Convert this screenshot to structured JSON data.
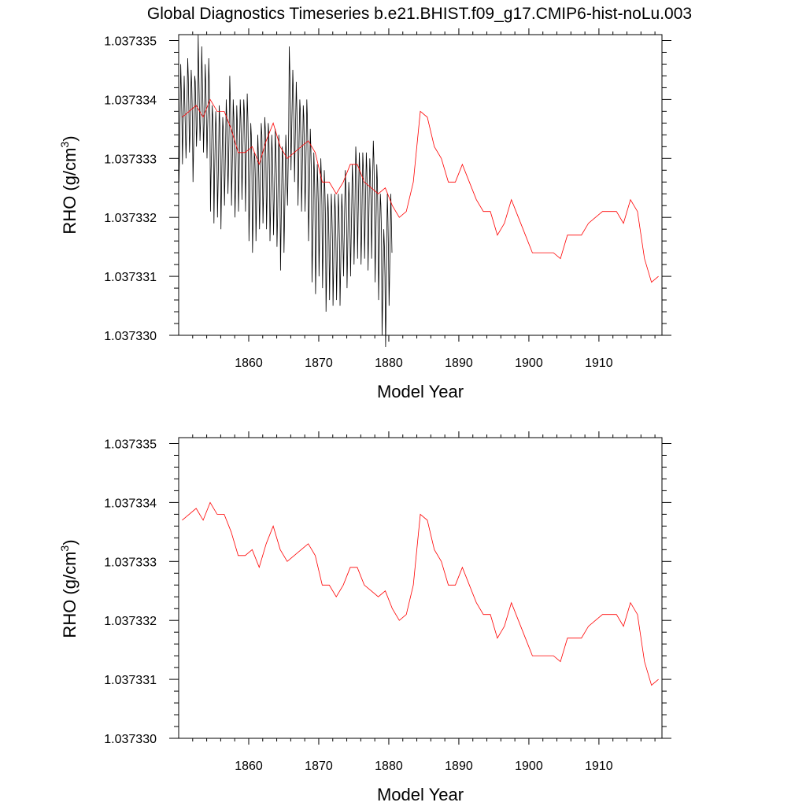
{
  "figure_title": "Global Diagnostics Timeseries b.e21.BHIST.f09_g17.CMIP6-hist-noLu.003",
  "chart_data": [
    {
      "type": "line",
      "xlabel": "Model Year",
      "ylabel": "RHO (g/cm3)",
      "ylabel_main": "RHO (g/cm",
      "ylabel_sup": "3",
      "ylabel_close": ")",
      "xlim": [
        1850,
        1919
      ],
      "ylim": [
        1.03733,
        1.0373351
      ],
      "xticks": [
        1860,
        1870,
        1880,
        1890,
        1900,
        1910
      ],
      "xtick_labels": [
        "1860",
        "1870",
        "1880",
        "1890",
        "1900",
        "1910"
      ],
      "yticks": [
        1.03733,
        1.037331,
        1.037332,
        1.037333,
        1.037334,
        1.037335
      ],
      "ytick_labels": [
        "1.037330",
        "1.037331",
        "1.037332",
        "1.037333",
        "1.037334",
        "1.037335"
      ],
      "series": [
        {
          "kind": "monthly",
          "color": "#000000",
          "x_start": 1850.04,
          "x_step": 0.0833333,
          "values": [
            1.0373326,
            1.0373331,
            1.0373337,
            1.0373346,
            1.0373342,
            1.0373337,
            1.0373329,
            1.0373335,
            1.0373339,
            1.0373344,
            1.0373339,
            1.0373335,
            1.037333,
            1.0373334,
            1.037334,
            1.0373347,
            1.0373344,
            1.0373338,
            1.0373331,
            1.0373334,
            1.0373339,
            1.0373345,
            1.0373342,
            1.0373337,
            1.0373326,
            1.0373331,
            1.0373336,
            1.0373344,
            1.0373343,
            1.0373338,
            1.0373332,
            1.0373335,
            1.037334,
            1.0373351,
            1.0373344,
            1.0373339,
            1.0373333,
            1.0373336,
            1.037334,
            1.0373349,
            1.0373344,
            1.0373339,
            1.0373331,
            1.0373335,
            1.0373339,
            1.0373346,
            1.0373342,
            1.0373337,
            1.037333,
            1.0373335,
            1.0373338,
            1.0373347,
            1.0373343,
            1.0373337,
            1.0373321,
            1.0373327,
            1.0373332,
            1.0373339,
            1.0373337,
            1.0373333,
            1.0373319,
            1.0373327,
            1.0373332,
            1.0373338,
            1.0373335,
            1.037333,
            1.037332,
            1.0373325,
            1.0373331,
            1.0373339,
            1.0373336,
            1.0373331,
            1.0373318,
            1.0373325,
            1.0373331,
            1.0373337,
            1.0373335,
            1.0373329,
            1.0373322,
            1.0373327,
            1.0373333,
            1.037334,
            1.0373337,
            1.0373332,
            1.0373324,
            1.0373329,
            1.0373335,
            1.0373344,
            1.037334,
            1.0373335,
            1.0373322,
            1.0373327,
            1.0373332,
            1.037334,
            1.0373337,
            1.0373331,
            1.037332,
            1.0373325,
            1.0373331,
            1.0373339,
            1.0373336,
            1.0373331,
            1.0373321,
            1.0373326,
            1.0373333,
            1.037334,
            1.0373337,
            1.0373332,
            1.0373323,
            1.0373329,
            1.0373334,
            1.037334,
            1.0373338,
            1.0373332,
            1.0373321,
            1.0373328,
            1.0373334,
            1.0373341,
            1.0373337,
            1.0373331,
            1.0373316,
            1.0373322,
            1.0373328,
            1.0373336,
            1.0373334,
            1.0373329,
            1.0373314,
            1.0373319,
            1.0373325,
            1.0373331,
            1.037333,
            1.0373326,
            1.0373316,
            1.0373322,
            1.0373327,
            1.0373334,
            1.0373331,
            1.0373326,
            1.0373318,
            1.0373323,
            1.0373329,
            1.0373336,
            1.0373334,
            1.0373328,
            1.0373319,
            1.0373324,
            1.037333,
            1.0373337,
            1.0373335,
            1.037333,
            1.0373318,
            1.0373323,
            1.0373329,
            1.0373336,
            1.0373334,
            1.0373328,
            1.0373316,
            1.0373321,
            1.0373327,
            1.0373334,
            1.0373331,
            1.0373327,
            1.0373317,
            1.0373322,
            1.0373327,
            1.0373335,
            1.0373331,
            1.0373327,
            1.0373315,
            1.037332,
            1.0373326,
            1.0373334,
            1.0373331,
            1.0373326,
            1.0373311,
            1.0373318,
            1.0373325,
            1.0373332,
            1.037333,
            1.0373325,
            1.0373314,
            1.037332,
            1.0373326,
            1.0373334,
            1.0373331,
            1.0373326,
            1.0373322,
            1.0373328,
            1.0373335,
            1.0373349,
            1.0373345,
            1.0373339,
            1.0373328,
            1.0373334,
            1.0373339,
            1.0373345,
            1.0373341,
            1.0373336,
            1.0373326,
            1.0373332,
            1.0373337,
            1.0373343,
            1.0373339,
            1.0373334,
            1.0373322,
            1.0373328,
            1.0373334,
            1.037334,
            1.0373338,
            1.0373333,
            1.0373321,
            1.0373326,
            1.0373332,
            1.0373339,
            1.0373337,
            1.0373331,
            1.0373321,
            1.0373326,
            1.0373332,
            1.037334,
            1.0373337,
            1.0373331,
            1.0373316,
            1.0373321,
            1.0373327,
            1.0373335,
            1.0373332,
            1.0373327,
            1.0373309,
            1.0373315,
            1.037332,
            1.0373331,
            1.0373328,
            1.0373323,
            1.0373307,
            1.0373313,
            1.037332,
            1.0373329,
            1.0373326,
            1.0373321,
            1.037331,
            1.0373317,
            1.0373323,
            1.037333,
            1.0373327,
            1.0373322,
            1.0373308,
            1.0373314,
            1.037332,
            1.0373328,
            1.0373325,
            1.037332,
            1.0373304,
            1.037331,
            1.0373316,
            1.0373324,
            1.0373321,
            1.0373316,
            1.0373306,
            1.0373313,
            1.0373319,
            1.0373324,
            1.0373321,
            1.0373316,
            1.0373305,
            1.0373311,
            1.0373317,
            1.0373324,
            1.0373321,
            1.0373316,
            1.0373306,
            1.0373312,
            1.0373318,
            1.0373324,
            1.0373321,
            1.0373316,
            1.0373305,
            1.0373311,
            1.0373317,
            1.0373324,
            1.0373321,
            1.0373316,
            1.037331,
            1.0373316,
            1.0373322,
            1.0373328,
            1.0373325,
            1.037332,
            1.0373308,
            1.0373314,
            1.037332,
            1.0373326,
            1.0373323,
            1.0373318,
            1.037331,
            1.0373316,
            1.0373322,
            1.0373329,
            1.0373326,
            1.0373321,
            1.0373312,
            1.0373318,
            1.0373325,
            1.0373332,
            1.0373329,
            1.0373323,
            1.0373313,
            1.037332,
            1.0373326,
            1.0373331,
            1.0373328,
            1.0373323,
            1.0373312,
            1.0373317,
            1.0373324,
            1.0373331,
            1.0373328,
            1.0373323,
            1.0373313,
            1.0373319,
            1.0373325,
            1.0373331,
            1.0373328,
            1.0373323,
            1.0373311,
            1.0373318,
            1.0373324,
            1.037333,
            1.0373327,
            1.0373323,
            1.0373313,
            1.037332,
            1.0373327,
            1.0373333,
            1.037333,
            1.0373324,
            1.0373309,
            1.0373315,
            1.0373321,
            1.0373329,
            1.0373326,
            1.037332,
            1.0373306,
            1.0373312,
            1.0373318,
            1.0373324,
            1.0373322,
            1.0373317,
            1.03733,
            1.0373306,
            1.0373312,
            1.0373318,
            1.0373315,
            1.037331,
            1.0373298,
            1.0373305,
            1.0373316,
            1.0373324,
            1.037332,
            1.0373314,
            1.0373305,
            1.0373311,
            1.0373317,
            1.0373324,
            1.0373319,
            1.0373314
          ]
        },
        {
          "kind": "annual",
          "color": "#ff0000",
          "x": [
            1850.5,
            1851.5,
            1852.5,
            1853.5,
            1854.5,
            1855.5,
            1856.5,
            1857.5,
            1858.5,
            1859.5,
            1860.5,
            1861.5,
            1862.5,
            1863.5,
            1864.5,
            1865.5,
            1866.5,
            1867.5,
            1868.5,
            1869.5,
            1870.5,
            1871.5,
            1872.5,
            1873.5,
            1874.5,
            1875.5,
            1876.5,
            1877.5,
            1878.5,
            1879.5,
            1880.5,
            1881.5,
            1882.5,
            1883.5,
            1884.5,
            1885.5,
            1886.5,
            1887.5,
            1888.5,
            1889.5,
            1890.5,
            1891.5,
            1892.5,
            1893.5,
            1894.5,
            1895.5,
            1896.5,
            1897.5,
            1898.5,
            1899.5,
            1900.5,
            1901.5,
            1902.5,
            1903.5,
            1904.5,
            1905.5,
            1906.5,
            1907.5,
            1908.5,
            1909.5,
            1910.5,
            1911.5,
            1912.5,
            1913.5,
            1914.5,
            1915.5,
            1916.5,
            1917.5,
            1918.5
          ],
          "values": [
            1.0373337,
            1.0373338,
            1.0373339,
            1.0373337,
            1.037334,
            1.0373338,
            1.0373338,
            1.0373335,
            1.0373331,
            1.0373331,
            1.0373332,
            1.0373329,
            1.0373333,
            1.0373336,
            1.0373332,
            1.037333,
            1.0373331,
            1.0373332,
            1.0373333,
            1.0373331,
            1.0373326,
            1.0373326,
            1.0373324,
            1.0373326,
            1.0373329,
            1.0373329,
            1.0373326,
            1.0373325,
            1.0373324,
            1.0373325,
            1.0373322,
            1.037332,
            1.0373321,
            1.0373326,
            1.0373338,
            1.0373337,
            1.0373332,
            1.037333,
            1.0373326,
            1.0373326,
            1.0373329,
            1.0373326,
            1.0373323,
            1.0373321,
            1.0373321,
            1.0373317,
            1.0373319,
            1.0373323,
            1.037332,
            1.0373317,
            1.0373314,
            1.0373314,
            1.0373314,
            1.0373314,
            1.0373313,
            1.0373317,
            1.0373317,
            1.0373317,
            1.0373319,
            1.037332,
            1.0373321,
            1.0373321,
            1.0373321,
            1.0373319,
            1.0373323,
            1.0373321,
            1.0373313,
            1.0373309,
            1.037331
          ]
        }
      ]
    },
    {
      "type": "line",
      "xlabel": "Model Year",
      "ylabel": "RHO (g/cm3)",
      "ylabel_main": "RHO (g/cm",
      "ylabel_sup": "3",
      "ylabel_close": ")",
      "xlim": [
        1850,
        1919
      ],
      "ylim": [
        1.03733,
        1.0373351
      ],
      "xticks": [
        1860,
        1870,
        1880,
        1890,
        1900,
        1910
      ],
      "xtick_labels": [
        "1860",
        "1870",
        "1880",
        "1890",
        "1900",
        "1910"
      ],
      "yticks": [
        1.03733,
        1.037331,
        1.037332,
        1.037333,
        1.037334,
        1.037335
      ],
      "ytick_labels": [
        "1.037330",
        "1.037331",
        "1.037332",
        "1.037333",
        "1.037334",
        "1.037335"
      ],
      "series": [
        {
          "kind": "annual",
          "color": "#ff0000",
          "x": [
            1850.5,
            1851.5,
            1852.5,
            1853.5,
            1854.5,
            1855.5,
            1856.5,
            1857.5,
            1858.5,
            1859.5,
            1860.5,
            1861.5,
            1862.5,
            1863.5,
            1864.5,
            1865.5,
            1866.5,
            1867.5,
            1868.5,
            1869.5,
            1870.5,
            1871.5,
            1872.5,
            1873.5,
            1874.5,
            1875.5,
            1876.5,
            1877.5,
            1878.5,
            1879.5,
            1880.5,
            1881.5,
            1882.5,
            1883.5,
            1884.5,
            1885.5,
            1886.5,
            1887.5,
            1888.5,
            1889.5,
            1890.5,
            1891.5,
            1892.5,
            1893.5,
            1894.5,
            1895.5,
            1896.5,
            1897.5,
            1898.5,
            1899.5,
            1900.5,
            1901.5,
            1902.5,
            1903.5,
            1904.5,
            1905.5,
            1906.5,
            1907.5,
            1908.5,
            1909.5,
            1910.5,
            1911.5,
            1912.5,
            1913.5,
            1914.5,
            1915.5,
            1916.5,
            1917.5,
            1918.5
          ],
          "values": [
            1.0373337,
            1.0373338,
            1.0373339,
            1.0373337,
            1.037334,
            1.0373338,
            1.0373338,
            1.0373335,
            1.0373331,
            1.0373331,
            1.0373332,
            1.0373329,
            1.0373333,
            1.0373336,
            1.0373332,
            1.037333,
            1.0373331,
            1.0373332,
            1.0373333,
            1.0373331,
            1.0373326,
            1.0373326,
            1.0373324,
            1.0373326,
            1.0373329,
            1.0373329,
            1.0373326,
            1.0373325,
            1.0373324,
            1.0373325,
            1.0373322,
            1.037332,
            1.0373321,
            1.0373326,
            1.0373338,
            1.0373337,
            1.0373332,
            1.037333,
            1.0373326,
            1.0373326,
            1.0373329,
            1.0373326,
            1.0373323,
            1.0373321,
            1.0373321,
            1.0373317,
            1.0373319,
            1.0373323,
            1.037332,
            1.0373317,
            1.0373314,
            1.0373314,
            1.0373314,
            1.0373314,
            1.0373313,
            1.0373317,
            1.0373317,
            1.0373317,
            1.0373319,
            1.037332,
            1.0373321,
            1.0373321,
            1.0373321,
            1.0373319,
            1.0373323,
            1.0373321,
            1.0373313,
            1.0373309,
            1.037331
          ]
        }
      ]
    }
  ]
}
